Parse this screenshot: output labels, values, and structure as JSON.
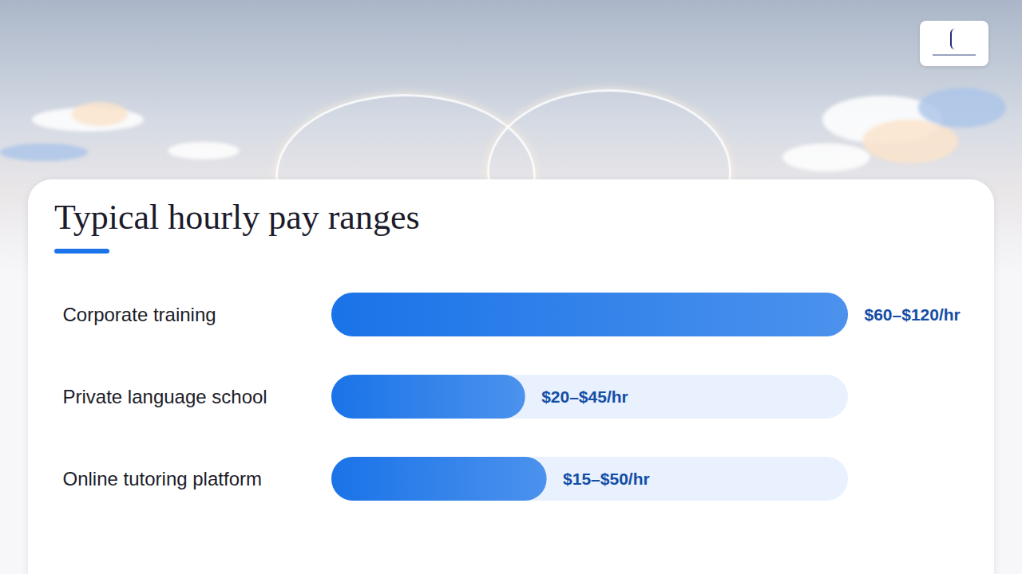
{
  "chart_data": {
    "type": "bar",
    "title": "Typical hourly pay ranges",
    "orientation": "horizontal",
    "categories": [
      "Corporate training",
      "Private language school",
      "Online tutoring platform"
    ],
    "values": [
      120,
      45,
      50
    ],
    "value_labels": [
      "$60–$120/hr",
      "$20–$45/hr",
      "$15–$50/hr"
    ],
    "xlim": [
      0,
      120
    ],
    "tick_labels": false,
    "data_labels": true,
    "grid": false,
    "color": "#1a73e8"
  }
}
